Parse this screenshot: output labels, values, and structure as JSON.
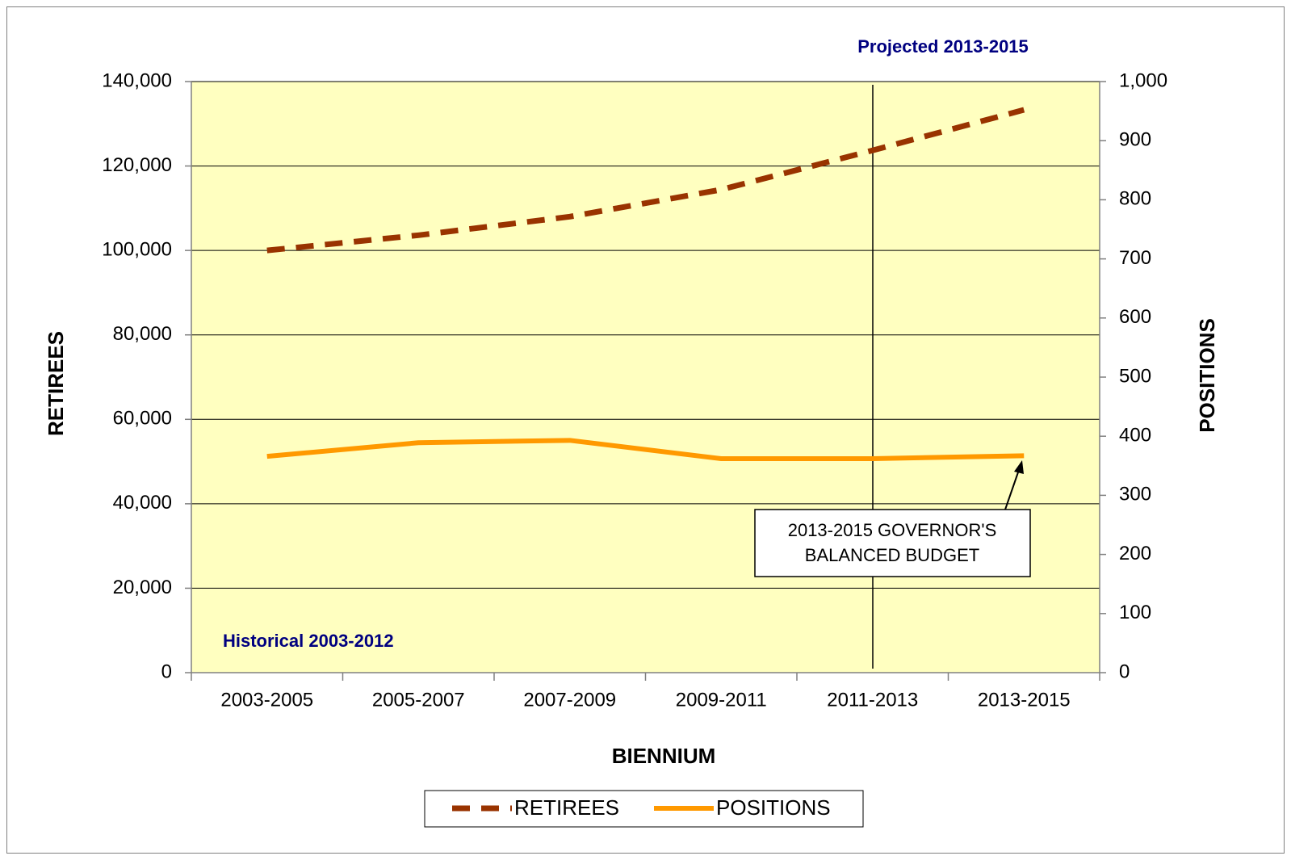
{
  "chart_data": {
    "type": "line",
    "x_label": "BIENNIUM",
    "y_label": "RETIREES",
    "y2_label": "POSITIONS",
    "categories": [
      "2003-2005",
      "2005-2007",
      "2007-2009",
      "2009-2011",
      "2011-2013",
      "2013-2015"
    ],
    "series": [
      {
        "name": "RETIREES",
        "color": "#993300",
        "dashed": true,
        "values": [
          100000,
          103600,
          108000,
          114400,
          123700,
          133300
        ]
      },
      {
        "name": "POSITIONS",
        "color": "#ff9900",
        "axis": "y2",
        "values": [
          366,
          389,
          393,
          362,
          362,
          367
        ]
      }
    ],
    "ylim": [
      0,
      140000
    ],
    "yticks": [
      0,
      {
        "value": 20000,
        "label": "20,000"
      },
      {
        "value": 40000,
        "label": "40,000"
      },
      {
        "value": 60000,
        "label": "60,000"
      },
      {
        "value": 80000,
        "label": "80,000"
      },
      {
        "value": 100000,
        "label": "100,000"
      },
      {
        "value": 120000,
        "label": "120,000"
      },
      {
        "value": 140000,
        "label": "140,000"
      }
    ],
    "y2lim": [
      0,
      1000
    ],
    "y2ticks": [
      0,
      100,
      200,
      300,
      400,
      500,
      600,
      700,
      800,
      900,
      {
        "value": 1000,
        "label": "1,000"
      }
    ],
    "grid": true,
    "legend": "bottom",
    "annotations": {
      "projected": "Projected 2013-2015",
      "historical": "Historical 2003-2012",
      "callout": [
        "2013-2015 GOVERNOR'S",
        "BALANCED BUDGET"
      ]
    }
  }
}
